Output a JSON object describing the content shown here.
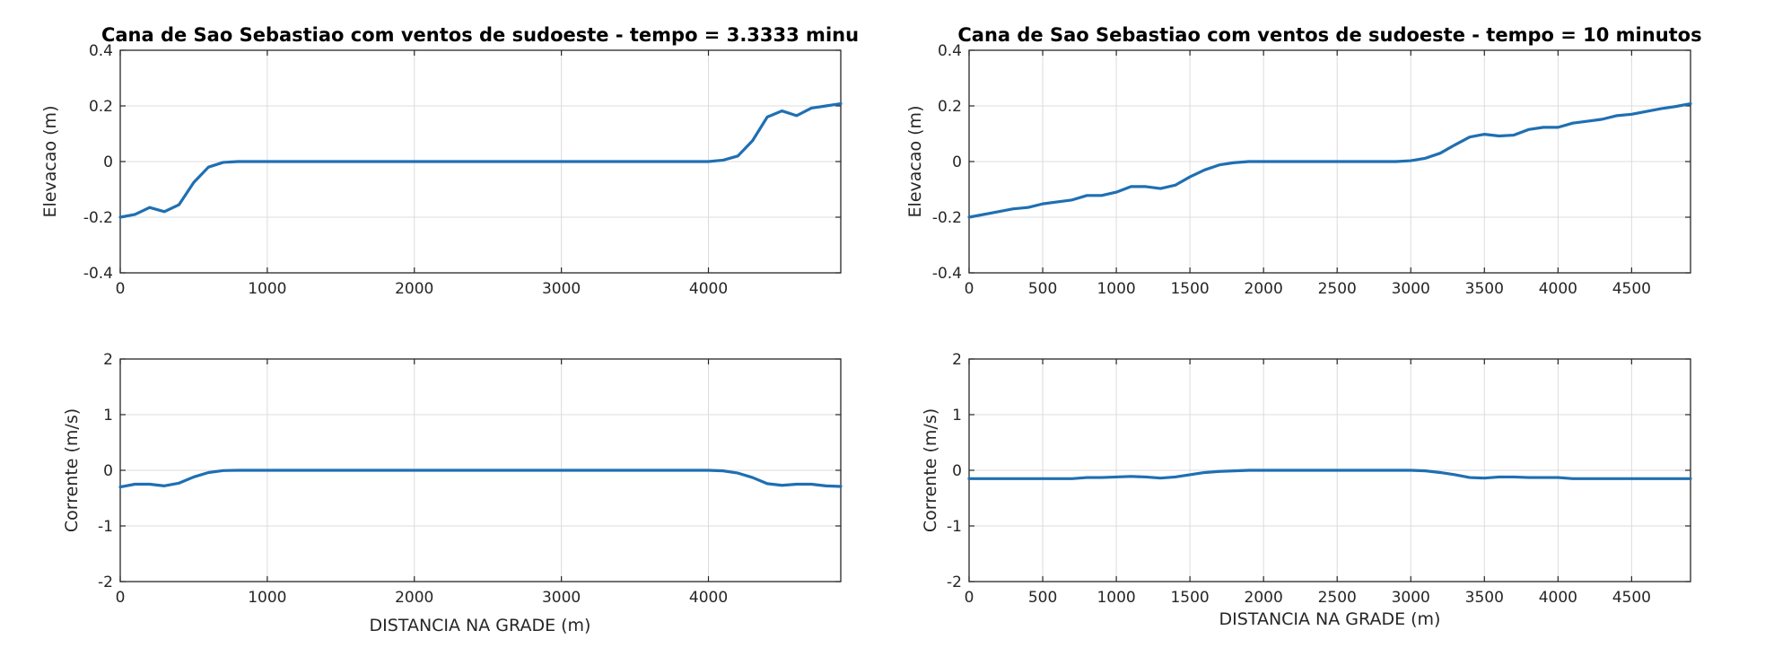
{
  "chart_data": [
    {
      "id": "p1",
      "type": "line",
      "title": "Cana de Sao Sebastiao com ventos de sudoeste - tempo = 3.3333 minu",
      "xlabel": "",
      "ylabel": "Elevacao (m)",
      "xlim": [
        0,
        4900
      ],
      "ylim": [
        -0.4,
        0.4
      ],
      "xticks": [
        0,
        1000,
        2000,
        3000,
        4000
      ],
      "yticks": [
        -0.4,
        -0.2,
        0,
        0.2,
        0.4
      ],
      "xticklabels": [
        "0",
        "1000",
        "2000",
        "3000",
        "4000"
      ],
      "yticklabels": [
        "-0.4",
        "-0.2",
        "0",
        "0.2",
        "0.4"
      ],
      "grid": true,
      "series": [
        {
          "color": "#1f6fb2",
          "x": [
            0,
            100,
            200,
            300,
            400,
            500,
            600,
            700,
            800,
            1000,
            2000,
            3000,
            3800,
            4000,
            4100,
            4200,
            4300,
            4400,
            4500,
            4600,
            4700,
            4800,
            4900
          ],
          "y": [
            -0.2,
            -0.19,
            -0.165,
            -0.18,
            -0.155,
            -0.075,
            -0.02,
            -0.003,
            0,
            0,
            0,
            0,
            0,
            0,
            0.005,
            0.02,
            0.075,
            0.16,
            0.182,
            0.165,
            0.192,
            0.2,
            0.208
          ]
        }
      ]
    },
    {
      "id": "p2",
      "type": "line",
      "title": "Cana de Sao Sebastiao com ventos de sudoeste - tempo = 10 minutos",
      "xlabel": "",
      "ylabel": "Elevacao (m)",
      "xlim": [
        0,
        4900
      ],
      "ylim": [
        -0.4,
        0.4
      ],
      "xticks": [
        0,
        500,
        1000,
        1500,
        2000,
        2500,
        3000,
        3500,
        4000,
        4500
      ],
      "yticks": [
        -0.4,
        -0.2,
        0,
        0.2,
        0.4
      ],
      "xticklabels": [
        "0",
        "500",
        "1000",
        "1500",
        "2000",
        "2500",
        "3000",
        "3500",
        "4000",
        "4500"
      ],
      "yticklabels": [
        "-0.4",
        "-0.2",
        "0",
        "0.2",
        "0.4"
      ],
      "grid": true,
      "series": [
        {
          "color": "#1f6fb2",
          "x": [
            0,
            200,
            300,
            400,
            500,
            600,
            700,
            800,
            900,
            1000,
            1100,
            1200,
            1300,
            1400,
            1500,
            1600,
            1700,
            1800,
            1900,
            2000,
            2500,
            2900,
            3000,
            3100,
            3200,
            3300,
            3400,
            3500,
            3600,
            3700,
            3800,
            3900,
            4000,
            4100,
            4200,
            4300,
            4400,
            4500,
            4600,
            4700,
            4800,
            4900
          ],
          "y": [
            -0.2,
            -0.18,
            -0.17,
            -0.165,
            -0.152,
            -0.145,
            -0.138,
            -0.122,
            -0.122,
            -0.11,
            -0.09,
            -0.09,
            -0.097,
            -0.085,
            -0.055,
            -0.03,
            -0.012,
            -0.004,
            0,
            0,
            0,
            0,
            0.003,
            0.012,
            0.03,
            0.06,
            0.088,
            0.098,
            0.092,
            0.095,
            0.115,
            0.123,
            0.123,
            0.138,
            0.145,
            0.152,
            0.165,
            0.17,
            0.18,
            0.19,
            0.198,
            0.208
          ]
        }
      ]
    },
    {
      "id": "p3",
      "type": "line",
      "title": "",
      "xlabel": "DISTANCIA NA GRADE (m)",
      "ylabel": "Corrente (m/s)",
      "xlim": [
        0,
        4900
      ],
      "ylim": [
        -2,
        2
      ],
      "xticks": [
        0,
        1000,
        2000,
        3000,
        4000
      ],
      "yticks": [
        -2,
        -1,
        0,
        1,
        2
      ],
      "xticklabels": [
        "0",
        "1000",
        "2000",
        "3000",
        "4000"
      ],
      "yticklabels": [
        "-2",
        "-1",
        "0",
        "1",
        "2"
      ],
      "grid": true,
      "series": [
        {
          "color": "#1f6fb2",
          "x": [
            0,
            100,
            200,
            300,
            400,
            500,
            600,
            700,
            800,
            1000,
            2000,
            3000,
            4000,
            4100,
            4200,
            4300,
            4400,
            4500,
            4600,
            4700,
            4800,
            4900
          ],
          "y": [
            -0.3,
            -0.25,
            -0.25,
            -0.28,
            -0.23,
            -0.12,
            -0.04,
            -0.005,
            0,
            0,
            0,
            0,
            0,
            -0.01,
            -0.05,
            -0.13,
            -0.24,
            -0.27,
            -0.25,
            -0.25,
            -0.28,
            -0.29
          ]
        }
      ]
    },
    {
      "id": "p4",
      "type": "line",
      "title": "",
      "xlabel": "DISTANCIA NA GRADE (m)",
      "ylabel": "Corrente (m/s)",
      "xlim": [
        0,
        4900
      ],
      "ylim": [
        -2,
        2
      ],
      "xticks": [
        0,
        500,
        1000,
        1500,
        2000,
        2500,
        3000,
        3500,
        4000,
        4500
      ],
      "yticks": [
        -2,
        -1,
        0,
        1,
        2
      ],
      "xticklabels": [
        "0",
        "500",
        "1000",
        "1500",
        "2000",
        "2500",
        "3000",
        "3500",
        "4000",
        "4500"
      ],
      "yticklabels": [
        "-2",
        "-1",
        "0",
        "1",
        "2"
      ],
      "grid": true,
      "series": [
        {
          "color": "#1f6fb2",
          "x": [
            0,
            500,
            600,
            700,
            800,
            900,
            1000,
            1100,
            1200,
            1300,
            1400,
            1500,
            1600,
            1700,
            1800,
            1900,
            2000,
            2500,
            2800,
            3000,
            3100,
            3200,
            3300,
            3400,
            3500,
            3600,
            3700,
            3800,
            3900,
            4000,
            4100,
            4500,
            4900
          ],
          "y": [
            -0.15,
            -0.15,
            -0.15,
            -0.15,
            -0.13,
            -0.13,
            -0.12,
            -0.11,
            -0.12,
            -0.14,
            -0.12,
            -0.08,
            -0.04,
            -0.02,
            -0.01,
            0,
            0,
            0,
            0,
            0,
            -0.01,
            -0.04,
            -0.08,
            -0.13,
            -0.14,
            -0.12,
            -0.12,
            -0.13,
            -0.13,
            -0.13,
            -0.15,
            -0.15,
            -0.15
          ]
        }
      ]
    }
  ]
}
